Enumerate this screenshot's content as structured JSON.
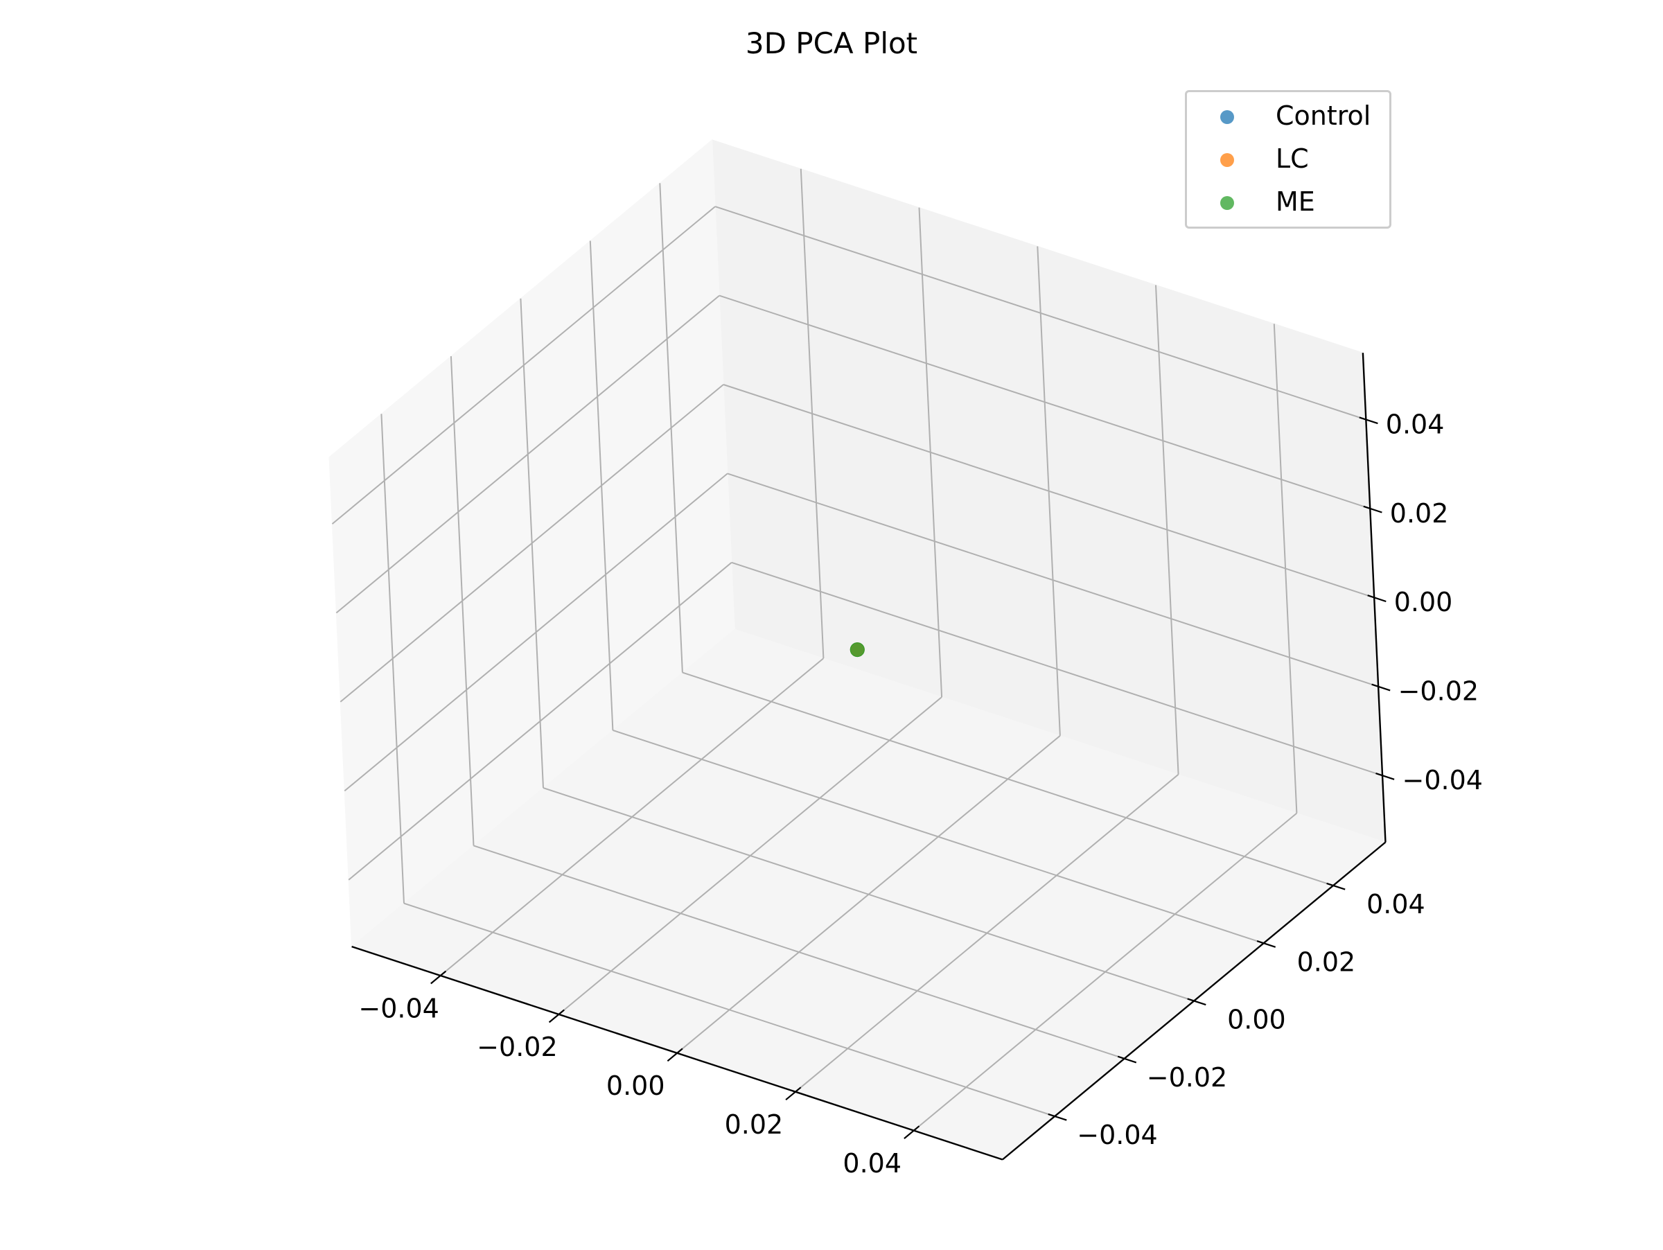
{
  "chart_data": {
    "type": "scatter",
    "title": "3D PCA Plot",
    "xlabel": "",
    "ylabel": "",
    "zlabel": "",
    "xlim": [
      -0.055,
      0.055
    ],
    "ylim": [
      -0.055,
      0.055
    ],
    "zlim": [
      -0.055,
      0.055
    ],
    "x_ticks": [
      "−0.04",
      "−0.02",
      "0.00",
      "0.02",
      "0.04"
    ],
    "y_ticks": [
      "−0.04",
      "−0.02",
      "0.00",
      "0.02",
      "0.04"
    ],
    "z_ticks": [
      "−0.04",
      "−0.02",
      "0.00",
      "0.02",
      "0.04"
    ],
    "grid": true,
    "legend_position": "top-right",
    "series": [
      {
        "name": "Control",
        "color": "#1f77b4",
        "points": [
          {
            "x": 0,
            "y": 0,
            "z": 0
          }
        ]
      },
      {
        "name": "LC",
        "color": "#ff7f0e",
        "points": [
          {
            "x": 0,
            "y": 0,
            "z": 0
          }
        ]
      },
      {
        "name": "ME",
        "color": "#2ca02c",
        "points": [
          {
            "x": 0,
            "y": 0,
            "z": 0
          }
        ]
      }
    ]
  }
}
